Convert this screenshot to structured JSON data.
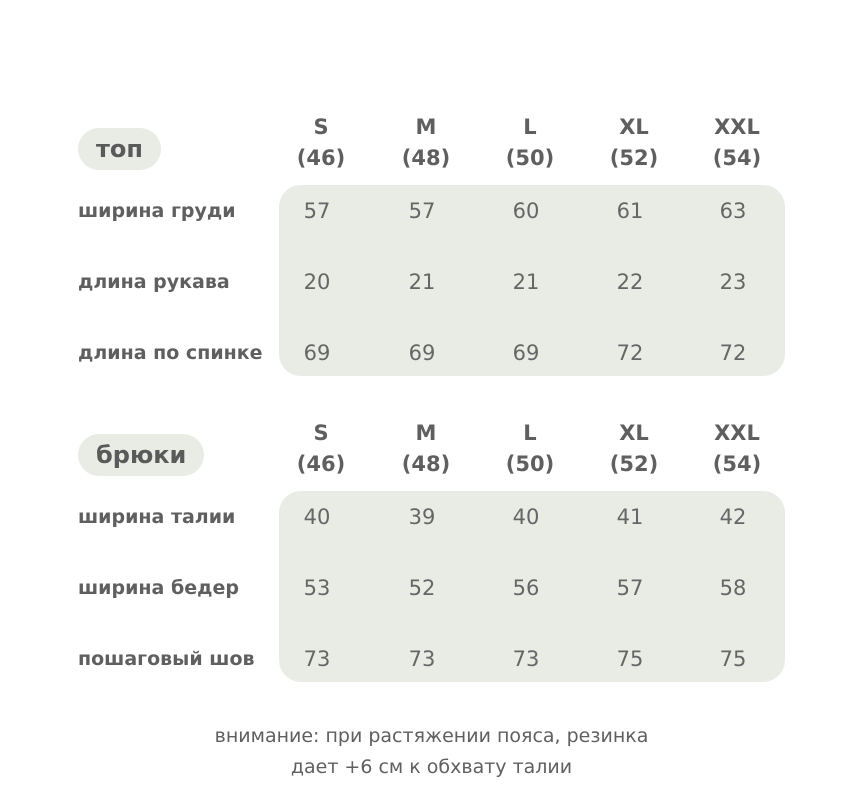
{
  "sizes": [
    {
      "size": "S",
      "ru": "(46)"
    },
    {
      "size": "M",
      "ru": "(48)"
    },
    {
      "size": "L",
      "ru": "(50)"
    },
    {
      "size": "XL",
      "ru": "(52)"
    },
    {
      "size": "XXL",
      "ru": "(54)"
    }
  ],
  "sections": [
    {
      "title": "топ",
      "rows": [
        {
          "label": "ширина груди",
          "values": [
            "57",
            "57",
            "60",
            "61",
            "63"
          ]
        },
        {
          "label": "длина рукава",
          "values": [
            "20",
            "21",
            "21",
            "22",
            "23"
          ]
        },
        {
          "label": "длина по спинке",
          "values": [
            "69",
            "69",
            "69",
            "72",
            "72"
          ]
        }
      ]
    },
    {
      "title": "брюки",
      "rows": [
        {
          "label": "ширина талии",
          "values": [
            "40",
            "39",
            "40",
            "41",
            "42"
          ]
        },
        {
          "label": "ширина бедер",
          "values": [
            "53",
            "52",
            "56",
            "57",
            "58"
          ]
        },
        {
          "label": "пошаговый шов",
          "values": [
            "73",
            "73",
            "73",
            "75",
            "75"
          ]
        }
      ]
    }
  ],
  "note": {
    "line1": "внимание: при растяжении пояса, резинка",
    "line2": "дает +6 см к обхвату талии"
  },
  "colors": {
    "panel": "#e9ebe5",
    "text": "#5f5f5f"
  }
}
